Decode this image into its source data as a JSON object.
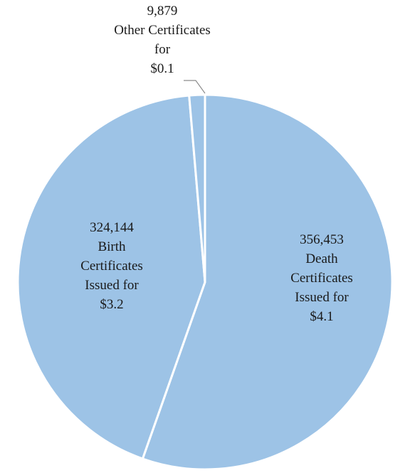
{
  "chart_data": {
    "type": "pie",
    "title": "",
    "unit_note": "",
    "slices": [
      {
        "key": "death",
        "count_label": "356,453",
        "name_lines": [
          "Death",
          "Certificates",
          "Issued for"
        ],
        "amount_label": "$4.1",
        "count": 356453,
        "value": 4.1
      },
      {
        "key": "birth",
        "count_label": "324,144",
        "name_lines": [
          "Birth",
          "Certificates",
          "Issued for"
        ],
        "amount_label": "$3.2",
        "count": 324144,
        "value": 3.2
      },
      {
        "key": "other",
        "count_label": "9,879",
        "name_lines": [
          "Other Certificates",
          "for"
        ],
        "amount_label": "$0.1",
        "count": 9879,
        "value": 0.1
      }
    ],
    "colors": {
      "slice_fill": "#9DC3E6",
      "slice_border": "#ffffff",
      "leader_line": "#8c8c8c",
      "text": "#1a1a1a"
    },
    "start_angle_deg": 0,
    "direction": "clockwise",
    "legend": "none",
    "data_labels": "on-slice"
  }
}
